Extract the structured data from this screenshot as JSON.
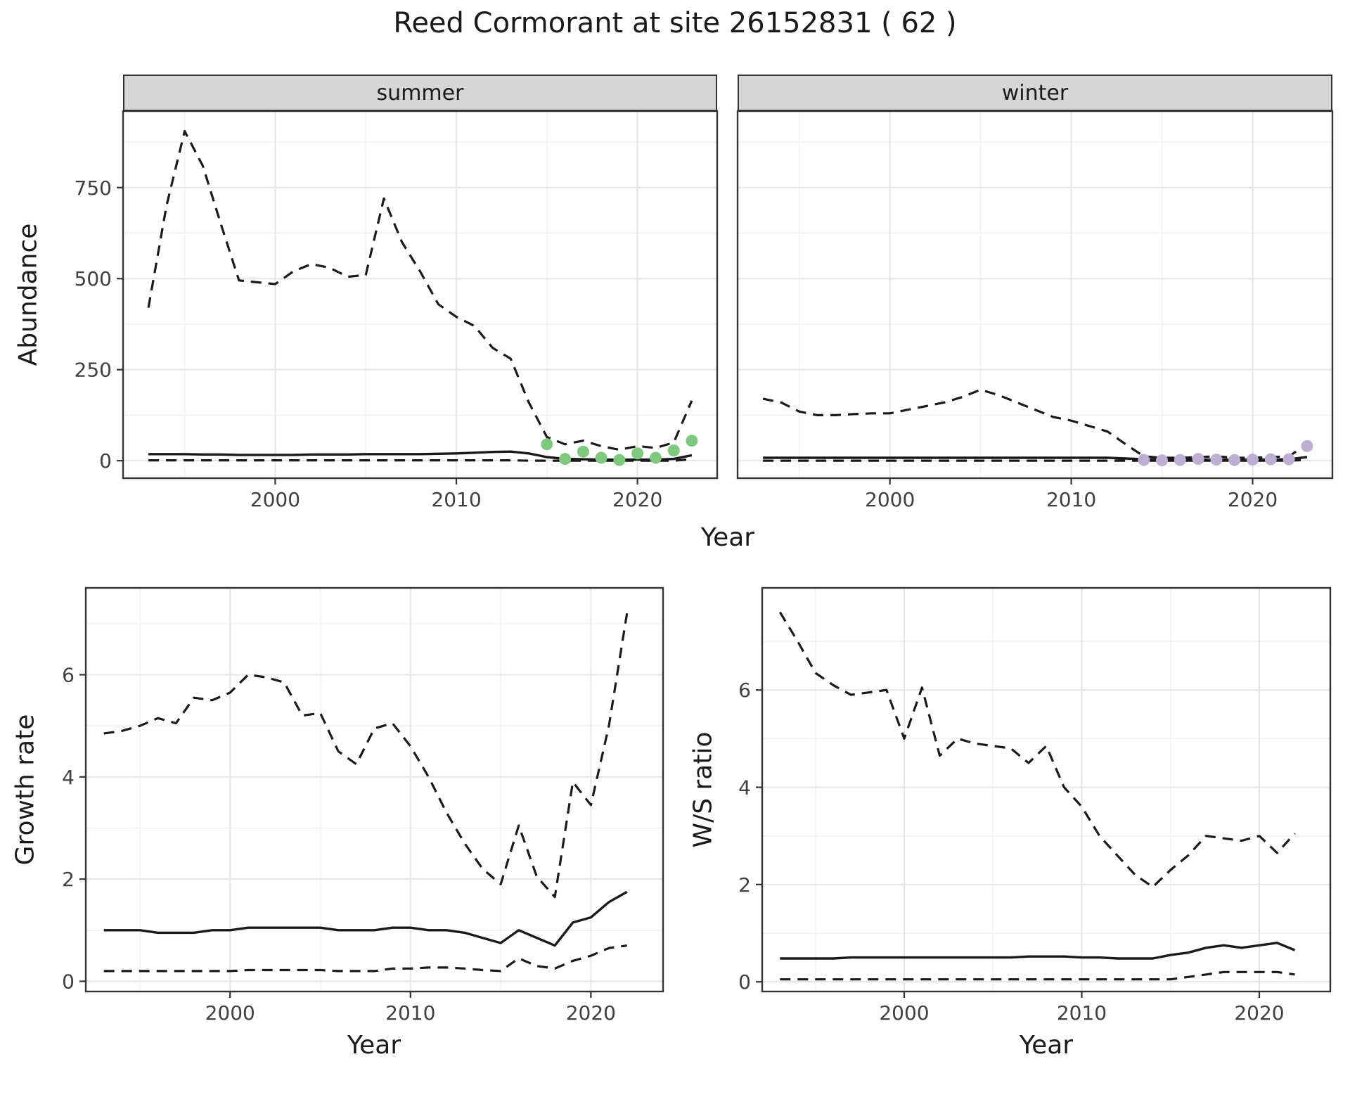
{
  "title": "Reed Cormorant at site 26152831 ( 62 )",
  "chart_data": [
    {
      "id": "abundance_summer",
      "type": "line",
      "facet_label": "summer",
      "xlabel": "Year",
      "ylabel": "Abundance",
      "xlim": [
        1991.6,
        2024.4
      ],
      "ylim": [
        -48,
        960
      ],
      "xticks": [
        2000,
        2010,
        2020
      ],
      "yticks": [
        0,
        250,
        500,
        750
      ],
      "grid": true,
      "legend": false,
      "x": [
        1993,
        1994,
        1995,
        1996,
        1997,
        1998,
        1999,
        2000,
        2001,
        2002,
        2003,
        2004,
        2005,
        2006,
        2007,
        2008,
        2009,
        2010,
        2011,
        2012,
        2013,
        2014,
        2015,
        2016,
        2017,
        2018,
        2019,
        2020,
        2021,
        2022,
        2023
      ],
      "series": [
        {
          "name": "upper-ci",
          "style": "dashed",
          "values": [
            420,
            700,
            905,
            810,
            650,
            495,
            490,
            485,
            520,
            540,
            530,
            505,
            510,
            720,
            600,
            520,
            430,
            395,
            370,
            310,
            280,
            160,
            65,
            45,
            55,
            40,
            30,
            40,
            35,
            50,
            165
          ]
        },
        {
          "name": "median",
          "style": "solid",
          "values": [
            18,
            18,
            18,
            17,
            17,
            16,
            16,
            16,
            16,
            17,
            17,
            17,
            18,
            18,
            18,
            18,
            19,
            20,
            22,
            24,
            25,
            20,
            10,
            5,
            4,
            3,
            3,
            3,
            3,
            5,
            15
          ]
        },
        {
          "name": "lower-ci",
          "style": "dashed",
          "values": [
            1,
            1,
            1,
            1,
            1,
            1,
            1,
            1,
            1,
            1,
            1,
            1,
            1,
            1,
            1,
            1,
            1,
            1,
            1,
            1,
            1,
            0,
            0,
            0,
            0,
            0,
            0,
            0,
            0,
            0,
            4
          ]
        }
      ],
      "points": {
        "name": "observed-counts",
        "color": "#7FC97F",
        "x": [
          2015,
          2016,
          2017,
          2018,
          2019,
          2020,
          2021,
          2022,
          2023
        ],
        "y": [
          45,
          5,
          25,
          8,
          2,
          20,
          8,
          28,
          55
        ]
      }
    },
    {
      "id": "abundance_winter",
      "type": "line",
      "facet_label": "winter",
      "xlabel": "Year",
      "ylabel": "Abundance",
      "xlim": [
        1991.6,
        2024.4
      ],
      "ylim": [
        -48,
        960
      ],
      "xticks": [
        2000,
        2010,
        2020
      ],
      "yticks": [
        0,
        250,
        500,
        750
      ],
      "grid": true,
      "legend": false,
      "x": [
        1993,
        1994,
        1995,
        1996,
        1997,
        1998,
        1999,
        2000,
        2001,
        2002,
        2003,
        2004,
        2005,
        2006,
        2007,
        2008,
        2009,
        2010,
        2011,
        2012,
        2013,
        2014,
        2015,
        2016,
        2017,
        2018,
        2019,
        2020,
        2021,
        2022,
        2023
      ],
      "series": [
        {
          "name": "upper-ci",
          "style": "dashed",
          "values": [
            170,
            160,
            135,
            125,
            125,
            128,
            130,
            130,
            140,
            150,
            160,
            175,
            195,
            180,
            160,
            140,
            120,
            110,
            95,
            80,
            45,
            12,
            8,
            8,
            10,
            12,
            8,
            8,
            10,
            12,
            45
          ]
        },
        {
          "name": "median",
          "style": "solid",
          "values": [
            8,
            8,
            8,
            8,
            8,
            8,
            8,
            8,
            8,
            8,
            8,
            8,
            8,
            8,
            8,
            8,
            8,
            8,
            8,
            8,
            6,
            4,
            3,
            3,
            3,
            3,
            3,
            3,
            3,
            4,
            10
          ]
        },
        {
          "name": "lower-ci",
          "style": "dashed",
          "values": [
            0,
            0,
            0,
            0,
            0,
            0,
            0,
            0,
            0,
            0,
            0,
            0,
            0,
            0,
            0,
            0,
            0,
            0,
            0,
            0,
            0,
            0,
            0,
            0,
            0,
            0,
            0,
            0,
            0,
            0,
            2
          ]
        }
      ],
      "points": {
        "name": "observed-counts",
        "color": "#BEAED4",
        "x": [
          2014,
          2015,
          2016,
          2017,
          2018,
          2019,
          2020,
          2021,
          2022,
          2023
        ],
        "y": [
          2,
          1,
          2,
          5,
          3,
          2,
          3,
          4,
          4,
          40
        ]
      }
    },
    {
      "id": "growth_rate",
      "type": "line",
      "xlabel": "Year",
      "ylabel": "Growth rate",
      "xlim": [
        1992,
        2024
      ],
      "ylim": [
        -0.2,
        7.7
      ],
      "xticks": [
        2000,
        2010,
        2020
      ],
      "yticks": [
        0,
        2,
        4,
        6
      ],
      "grid": true,
      "legend": false,
      "x": [
        1993,
        1994,
        1995,
        1996,
        1997,
        1998,
        1999,
        2000,
        2001,
        2002,
        2003,
        2004,
        2005,
        2006,
        2007,
        2008,
        2009,
        2010,
        2011,
        2012,
        2013,
        2014,
        2015,
        2016,
        2017,
        2018,
        2019,
        2020,
        2021,
        2022
      ],
      "series": [
        {
          "name": "upper-ci",
          "style": "dashed",
          "values": [
            4.85,
            4.9,
            5.0,
            5.15,
            5.05,
            5.55,
            5.5,
            5.65,
            6.0,
            5.95,
            5.85,
            5.2,
            5.25,
            4.5,
            4.25,
            4.95,
            5.05,
            4.6,
            4.0,
            3.3,
            2.7,
            2.2,
            1.9,
            3.05,
            2.05,
            1.65,
            3.9,
            3.45,
            5.0,
            7.2
          ]
        },
        {
          "name": "median",
          "style": "solid",
          "values": [
            1.0,
            1.0,
            1.0,
            0.95,
            0.95,
            0.95,
            1.0,
            1.0,
            1.05,
            1.05,
            1.05,
            1.05,
            1.05,
            1.0,
            1.0,
            1.0,
            1.05,
            1.05,
            1.0,
            1.0,
            0.95,
            0.85,
            0.75,
            1.0,
            0.85,
            0.7,
            1.15,
            1.25,
            1.55,
            1.75
          ]
        },
        {
          "name": "lower-ci",
          "style": "dashed",
          "values": [
            0.2,
            0.2,
            0.2,
            0.2,
            0.2,
            0.2,
            0.2,
            0.2,
            0.22,
            0.22,
            0.22,
            0.22,
            0.22,
            0.2,
            0.2,
            0.2,
            0.25,
            0.25,
            0.27,
            0.27,
            0.25,
            0.22,
            0.2,
            0.45,
            0.3,
            0.25,
            0.4,
            0.5,
            0.65,
            0.7
          ]
        }
      ]
    },
    {
      "id": "ws_ratio",
      "type": "line",
      "xlabel": "Year",
      "ylabel": "W/S ratio",
      "xlim": [
        1992,
        2024
      ],
      "ylim": [
        -0.2,
        8.1
      ],
      "xticks": [
        2000,
        2010,
        2020
      ],
      "yticks": [
        0,
        2,
        4,
        6
      ],
      "grid": true,
      "legend": false,
      "x": [
        1993,
        1994,
        1995,
        1996,
        1997,
        1998,
        1999,
        2000,
        2001,
        2002,
        2003,
        2004,
        2005,
        2006,
        2007,
        2008,
        2009,
        2010,
        2011,
        2012,
        2013,
        2014,
        2015,
        2016,
        2017,
        2018,
        2019,
        2020,
        2021,
        2022
      ],
      "series": [
        {
          "name": "upper-ci",
          "style": "dashed",
          "values": [
            7.6,
            7.0,
            6.35,
            6.1,
            5.9,
            5.95,
            6.0,
            5.0,
            6.05,
            4.65,
            5.0,
            4.9,
            4.85,
            4.8,
            4.5,
            4.85,
            4.0,
            3.6,
            3.0,
            2.6,
            2.2,
            1.95,
            2.3,
            2.6,
            3.0,
            2.95,
            2.9,
            3.0,
            2.65,
            3.05
          ]
        },
        {
          "name": "median",
          "style": "solid",
          "values": [
            0.48,
            0.48,
            0.48,
            0.48,
            0.5,
            0.5,
            0.5,
            0.5,
            0.5,
            0.5,
            0.5,
            0.5,
            0.5,
            0.5,
            0.52,
            0.52,
            0.52,
            0.5,
            0.5,
            0.48,
            0.48,
            0.48,
            0.55,
            0.6,
            0.7,
            0.75,
            0.7,
            0.75,
            0.8,
            0.65
          ]
        },
        {
          "name": "lower-ci",
          "style": "dashed",
          "values": [
            0.05,
            0.05,
            0.05,
            0.05,
            0.05,
            0.05,
            0.05,
            0.05,
            0.05,
            0.05,
            0.05,
            0.05,
            0.05,
            0.05,
            0.05,
            0.05,
            0.05,
            0.05,
            0.05,
            0.05,
            0.05,
            0.05,
            0.05,
            0.1,
            0.15,
            0.2,
            0.2,
            0.2,
            0.2,
            0.15
          ]
        }
      ]
    }
  ]
}
